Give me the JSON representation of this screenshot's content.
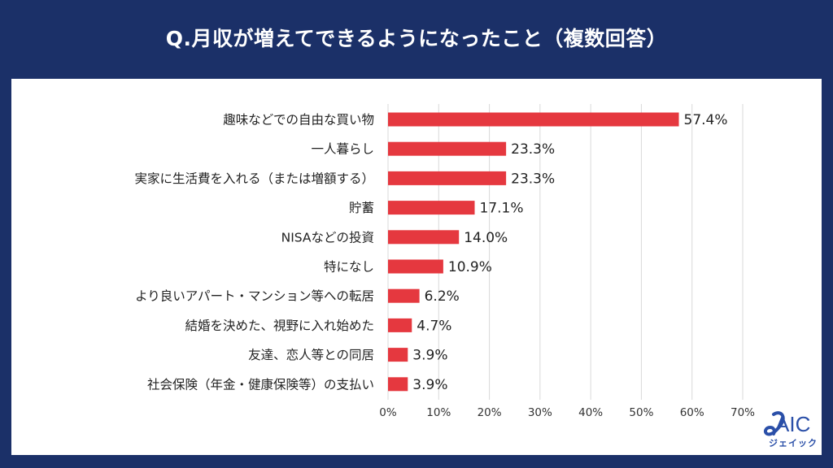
{
  "title": "Q.月収が増えてできるようになったこと（複数回答）",
  "colors": {
    "background": "#1b3068",
    "bar": "#e5383f",
    "grid": "#d9d9d9",
    "logo": "#2a4fa8"
  },
  "logo": {
    "text": "AIC",
    "subtext": "ジェイック",
    "icon": "jaic-swirl-icon"
  },
  "chart_data": {
    "type": "bar",
    "orientation": "horizontal",
    "title": "Q.月収が増えてできるようになったこと（複数回答）",
    "xlabel": "",
    "ylabel": "",
    "xlim": [
      0,
      70
    ],
    "grid": true,
    "categories": [
      "趣味などでの自由な買い物",
      "一人暮らし",
      "実家に生活費を入れる（または増額する）",
      "貯蓄",
      "NISAなどの投資",
      "特になし",
      "より良いアパート・マンション等への転居",
      "結婚を決めた、視野に入れ始めた",
      "友達、恋人等との同居",
      "社会保険（年金・健康保険等）の支払い"
    ],
    "values": [
      57.4,
      23.3,
      23.3,
      17.1,
      14.0,
      10.9,
      6.2,
      4.7,
      3.9,
      3.9
    ],
    "value_labels": [
      "57.4%",
      "23.3%",
      "23.3%",
      "17.1%",
      "14.0%",
      "10.9%",
      "6.2%",
      "4.7%",
      "3.9%",
      "3.9%"
    ],
    "ticks": [
      0,
      10,
      20,
      30,
      40,
      50,
      60,
      70
    ],
    "tick_labels": [
      "0%",
      "10%",
      "20%",
      "30%",
      "40%",
      "50%",
      "60%",
      "70%"
    ]
  }
}
